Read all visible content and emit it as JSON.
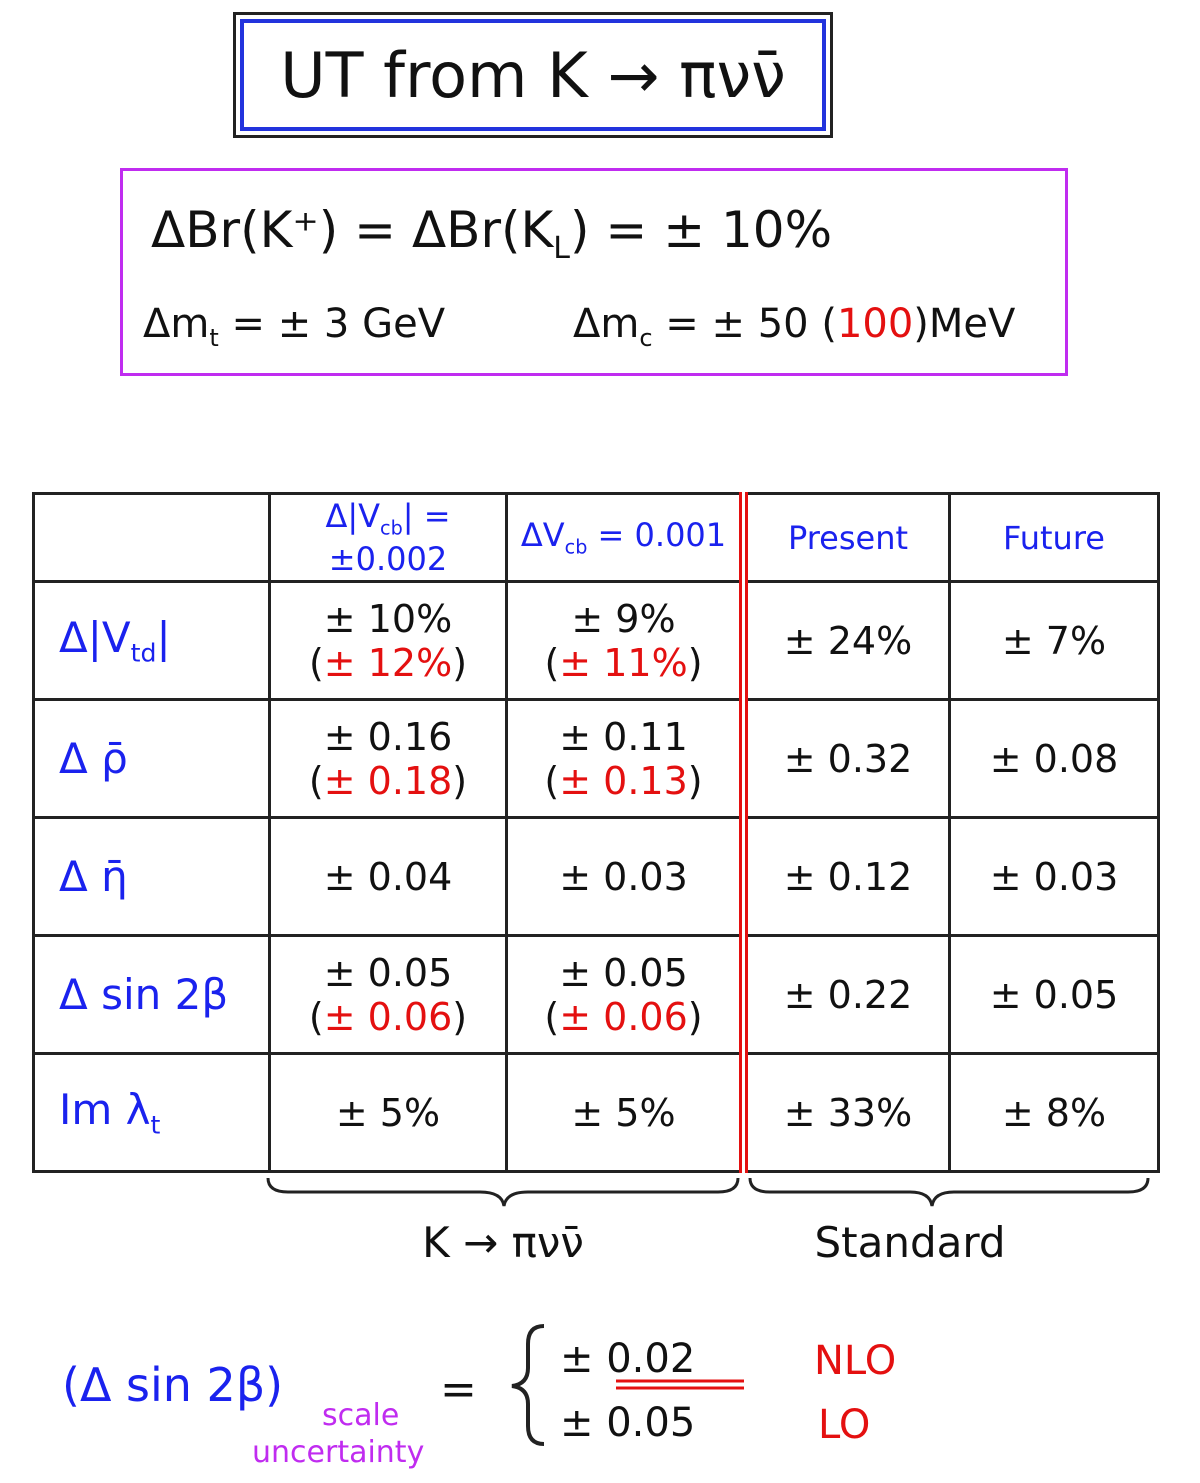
{
  "title": "UT from K → πνν̄",
  "inputs": {
    "branching": {
      "a": "ΔBr(K⁺) = ΔBr(K",
      "sub": "L",
      "b": ") = ± 10%"
    },
    "mt": {
      "a": "Δm",
      "sub": "t",
      "b": " = ± 3 GeV"
    },
    "mc": {
      "a": "Δm",
      "sub": "c",
      "b": " = ± 50 (",
      "alt": "100",
      "c": ")MeV"
    }
  },
  "table": {
    "columns": [
      {
        "a": "Δ|V",
        "sub": "cb",
        "b": "| = ±0.002"
      },
      {
        "a": "ΔV",
        "sub": "cb",
        "b": " = 0.001"
      },
      {
        "a": "Present"
      },
      {
        "a": "Future"
      }
    ],
    "rows": [
      {
        "label": {
          "a": "Δ|V",
          "sub": "td",
          "b": "|"
        },
        "cells": [
          {
            "main": "± 10%",
            "paren": {
              "a": "(",
              "alt": "± 12%",
              "b": ")"
            }
          },
          {
            "main": "± 9%",
            "paren": {
              "a": "(",
              "alt": "± 11%",
              "b": ")"
            }
          },
          {
            "main": "± 24%"
          },
          {
            "main": "± 7%"
          }
        ]
      },
      {
        "label": {
          "a": "Δ ρ̄"
        },
        "cells": [
          {
            "main": "± 0.16",
            "paren": {
              "a": "(",
              "alt": "± 0.18",
              "b": ")"
            }
          },
          {
            "main": "± 0.11",
            "paren": {
              "a": "(",
              "alt": "± 0.13",
              "b": ")"
            }
          },
          {
            "main": "± 0.32"
          },
          {
            "main": "± 0.08"
          }
        ]
      },
      {
        "label": {
          "a": "Δ η̄"
        },
        "cells": [
          {
            "main": "± 0.04"
          },
          {
            "main": "± 0.03"
          },
          {
            "main": "± 0.12"
          },
          {
            "main": "± 0.03"
          }
        ]
      },
      {
        "label": {
          "a": "Δ sin 2β"
        },
        "cells": [
          {
            "main": "± 0.05",
            "paren": {
              "a": "(",
              "alt": "± 0.06",
              "b": ")"
            }
          },
          {
            "main": "± 0.05",
            "paren": {
              "a": "(",
              "alt": "± 0.06",
              "b": ")"
            }
          },
          {
            "main": "± 0.22"
          },
          {
            "main": "± 0.05"
          }
        ]
      },
      {
        "label": {
          "a": "Im λ",
          "sub": "t"
        },
        "cells": [
          {
            "main": "± 5%"
          },
          {
            "main": "± 5%"
          },
          {
            "main": "± 33%"
          },
          {
            "main": "± 8%"
          }
        ]
      }
    ],
    "groups": [
      "K → πνν̄",
      "Standard"
    ]
  },
  "footer": {
    "lhs": "(Δ sin 2β)",
    "subscript": "scale",
    "subscript2": "uncertainty",
    "equals": "=",
    "cases": [
      {
        "value": "± 0.02",
        "label": "NLO"
      },
      {
        "value": "± 0.05",
        "label": "LO"
      }
    ]
  }
}
